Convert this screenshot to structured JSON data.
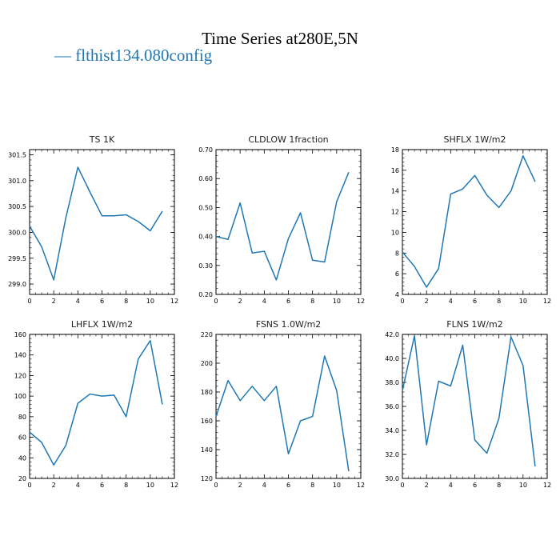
{
  "title": "Time Series at280E,5N",
  "legend": {
    "label": "— flthist134.080config",
    "color": "#1f77b4"
  },
  "chart_data": [
    {
      "type": "line",
      "title": "TS   1K",
      "x": [
        0,
        1,
        2,
        3,
        4,
        5,
        6,
        7,
        8,
        9,
        10,
        11
      ],
      "series": [
        {
          "values": [
            300.12,
            299.72,
            299.08,
            300.28,
            301.26,
            300.78,
            300.32,
            300.32,
            300.34,
            300.21,
            300.03,
            300.41
          ]
        }
      ],
      "xlim": [
        0,
        12
      ],
      "ylim": [
        298.8,
        301.6
      ],
      "xticks": [
        "0",
        "2",
        "4",
        "6",
        "8",
        "10",
        "12"
      ],
      "yticks": [
        "299.0",
        "299.5",
        "300.0",
        "300.5",
        "301.0",
        "301.5"
      ],
      "color": "#1f77b4"
    },
    {
      "type": "line",
      "title": "CLDLOW   1fraction",
      "x": [
        0,
        1,
        2,
        3,
        4,
        5,
        6,
        7,
        8,
        9,
        10,
        11
      ],
      "series": [
        {
          "values": [
            0.4,
            0.39,
            0.516,
            0.343,
            0.349,
            0.25,
            0.393,
            0.482,
            0.318,
            0.312,
            0.52,
            0.622
          ]
        }
      ],
      "xlim": [
        0,
        12
      ],
      "ylim": [
        0.2,
        0.7
      ],
      "xticks": [
        "0",
        "2",
        "4",
        "6",
        "8",
        "10",
        "12"
      ],
      "yticks": [
        "0.20",
        "0.30",
        "0.40",
        "0.50",
        "0.60",
        "0.70"
      ],
      "color": "#1f77b4"
    },
    {
      "type": "line",
      "title": "SHFLX   1W/m2",
      "x": [
        0,
        1,
        2,
        3,
        4,
        5,
        6,
        7,
        8,
        9,
        10,
        11
      ],
      "series": [
        {
          "values": [
            8.1,
            6.7,
            4.7,
            6.5,
            13.7,
            14.2,
            15.5,
            13.6,
            12.4,
            14.0,
            17.4,
            14.9
          ]
        }
      ],
      "xlim": [
        0,
        12
      ],
      "ylim": [
        4,
        18
      ],
      "xticks": [
        "0",
        "2",
        "4",
        "6",
        "8",
        "10",
        "12"
      ],
      "yticks": [
        "4",
        "6",
        "8",
        "10",
        "12",
        "14",
        "16",
        "18"
      ],
      "color": "#1f77b4"
    },
    {
      "type": "line",
      "title": "LHFLX   1W/m2",
      "x": [
        0,
        1,
        2,
        3,
        4,
        5,
        6,
        7,
        8,
        9,
        10,
        11
      ],
      "series": [
        {
          "values": [
            65,
            55,
            33,
            52,
            93,
            102,
            100,
            101,
            80,
            136,
            154,
            92
          ]
        }
      ],
      "xlim": [
        0,
        12
      ],
      "ylim": [
        20,
        160
      ],
      "xticks": [
        "0",
        "2",
        "4",
        "6",
        "8",
        "10",
        "12"
      ],
      "yticks": [
        "20",
        "40",
        "60",
        "80",
        "100",
        "120",
        "140",
        "160"
      ],
      "color": "#1f77b4"
    },
    {
      "type": "line",
      "title": "FSNS   1.0W/m2",
      "x": [
        0,
        1,
        2,
        3,
        4,
        5,
        6,
        7,
        8,
        9,
        10,
        11
      ],
      "series": [
        {
          "values": [
            163,
            188,
            174,
            184,
            174,
            184,
            137,
            160,
            163,
            205,
            181,
            125
          ]
        }
      ],
      "xlim": [
        0,
        12
      ],
      "ylim": [
        120,
        220
      ],
      "xticks": [
        "0",
        "2",
        "4",
        "6",
        "8",
        "10",
        "12"
      ],
      "yticks": [
        "120",
        "140",
        "160",
        "180",
        "200",
        "220"
      ],
      "color": "#1f77b4"
    },
    {
      "type": "line",
      "title": "FLNS   1W/m2",
      "x": [
        0,
        1,
        2,
        3,
        4,
        5,
        6,
        7,
        8,
        9,
        10,
        11
      ],
      "series": [
        {
          "values": [
            37.3,
            41.9,
            32.8,
            38.1,
            37.7,
            41.1,
            33.2,
            32.1,
            35.0,
            41.8,
            39.4,
            31.0
          ]
        }
      ],
      "xlim": [
        0,
        12
      ],
      "ylim": [
        30,
        42
      ],
      "xticks": [
        "0",
        "2",
        "4",
        "6",
        "8",
        "10",
        "12"
      ],
      "yticks": [
        "30.0",
        "32.0",
        "34.0",
        "36.0",
        "38.0",
        "40.0",
        "42.0"
      ],
      "color": "#1f77b4"
    }
  ]
}
